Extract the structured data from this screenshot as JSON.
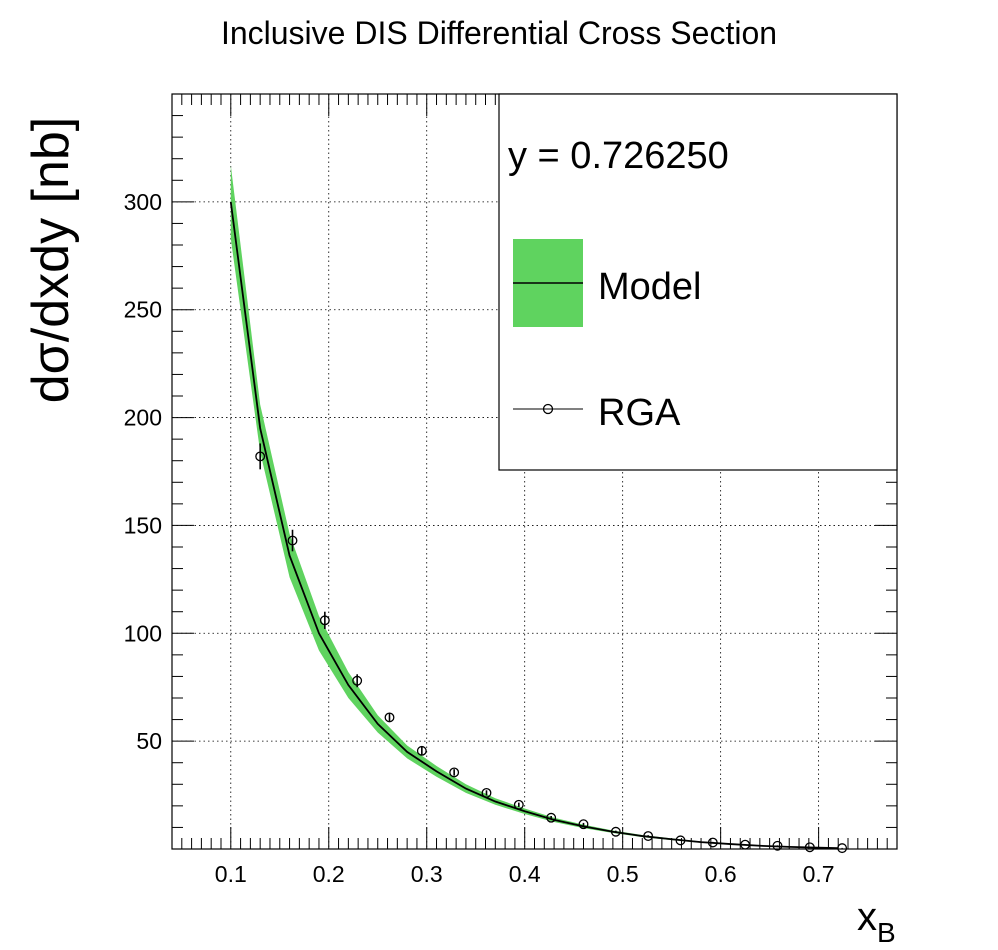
{
  "chart_data": {
    "type": "line",
    "title": "Inclusive DIS Differential Cross Section",
    "xlabel": "x",
    "xlabel_sub": "B",
    "ylabel": "dσ/dxdy [nb]",
    "xlim": [
      0.04,
      0.78
    ],
    "ylim": [
      0,
      350
    ],
    "xticks": [
      0.1,
      0.2,
      0.3,
      0.4,
      0.5,
      0.6,
      0.7
    ],
    "xtick_labels": [
      "0.1",
      "0.2",
      "0.3",
      "0.4",
      "0.5",
      "0.6",
      "0.7"
    ],
    "yticks": [
      50,
      100,
      150,
      200,
      250,
      300
    ],
    "ytick_labels": [
      "50",
      "100",
      "150",
      "200",
      "250",
      "300"
    ],
    "grid": true,
    "legend": {
      "placement": "top-right",
      "header": "y = 0.726250",
      "entries": [
        "Model",
        "RGA"
      ]
    },
    "colors": {
      "band": "#5fd35f",
      "line": "#000000",
      "marker": "#000000"
    },
    "series": [
      {
        "name": "Model",
        "kind": "line_with_band",
        "x": [
          0.1,
          0.13,
          0.16,
          0.19,
          0.22,
          0.25,
          0.28,
          0.31,
          0.34,
          0.37,
          0.4,
          0.43,
          0.46,
          0.49,
          0.52,
          0.55,
          0.58,
          0.61,
          0.64,
          0.67,
          0.7,
          0.72
        ],
        "y": [
          300,
          195,
          136,
          100,
          76,
          58,
          45,
          36,
          28,
          22,
          17.5,
          13.5,
          10.5,
          8,
          6,
          4.5,
          3.2,
          2.3,
          1.5,
          1.0,
          0.6,
          0.4
        ],
        "band_lo": [
          283,
          184,
          126,
          92,
          70,
          54,
          42,
          33.5,
          26,
          20.5,
          16.2,
          12.5,
          9.7,
          7.4,
          5.5,
          4.1,
          2.9,
          2.0,
          1.3,
          0.8,
          0.4,
          0.25
        ],
        "band_hi": [
          317,
          206,
          146,
          108,
          82,
          62,
          48,
          38.5,
          30,
          23.5,
          18.8,
          14.5,
          11.3,
          8.6,
          6.5,
          4.9,
          3.5,
          2.6,
          1.7,
          1.2,
          0.8,
          0.55
        ]
      },
      {
        "name": "RGA",
        "kind": "markers_with_errors",
        "x": [
          0.13,
          0.163,
          0.196,
          0.229,
          0.262,
          0.295,
          0.328,
          0.361,
          0.394,
          0.427,
          0.46,
          0.493,
          0.526,
          0.559,
          0.592,
          0.625,
          0.658,
          0.691,
          0.724
        ],
        "y": [
          182,
          143,
          106,
          78,
          61,
          45.5,
          35.5,
          26,
          20.5,
          14.5,
          11.5,
          8,
          6,
          4,
          3,
          2,
          1.5,
          0.8,
          0.4
        ],
        "yerr": [
          6,
          5,
          4,
          3,
          2,
          1.8,
          1.5,
          1.2,
          1.0,
          0.8,
          0.6,
          0.5,
          0.4,
          0.3,
          0.3,
          0.2,
          0.2,
          0.1,
          0.1
        ]
      }
    ]
  }
}
